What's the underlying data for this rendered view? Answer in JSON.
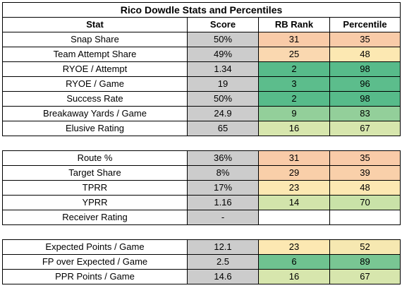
{
  "title": "Rico Dowdle Stats and Percentiles",
  "headers": [
    "Stat",
    "Score",
    "RB Rank",
    "Percentile"
  ],
  "colors": {
    "score_bg": "#cccccc",
    "scale": {
      "dark_green": "#57bb8a",
      "mid_green": "#93cf9a",
      "light_green": "#d7e6ad",
      "light_yellow": "#fce8b2",
      "light_orange": "#f9cba8",
      "white": "#ffffff"
    }
  },
  "sections": [
    {
      "rows": [
        {
          "stat": "Snap Share",
          "score": "50%",
          "rank": "31",
          "pct": "35",
          "rank_color": "#f9cba8",
          "pct_color": "#f9cba8"
        },
        {
          "stat": "Team Attempt Share",
          "score": "49%",
          "rank": "25",
          "pct": "48",
          "rank_color": "#fad8b0",
          "pct_color": "#fce8b2"
        },
        {
          "stat": "RYOE / Attempt",
          "score": "1.34",
          "rank": "2",
          "pct": "98",
          "rank_color": "#57bb8a",
          "pct_color": "#57bb8a"
        },
        {
          "stat": "RYOE / Game",
          "score": "19",
          "rank": "3",
          "pct": "96",
          "rank_color": "#5cbd8c",
          "pct_color": "#5cbd8c"
        },
        {
          "stat": "Success Rate",
          "score": "50%",
          "rank": "2",
          "pct": "98",
          "rank_color": "#57bb8a",
          "pct_color": "#57bb8a"
        },
        {
          "stat": "Breakaway Yards / Game",
          "score": "24.9",
          "rank": "9",
          "pct": "83",
          "rank_color": "#93cf9a",
          "pct_color": "#93cf9a"
        },
        {
          "stat": "Elusive Rating",
          "score": "65",
          "rank": "16",
          "pct": "67",
          "rank_color": "#d7e6ad",
          "pct_color": "#d7e6ad"
        }
      ]
    },
    {
      "rows": [
        {
          "stat": "Route %",
          "score": "36%",
          "rank": "31",
          "pct": "35",
          "rank_color": "#f9cba8",
          "pct_color": "#f9cba8"
        },
        {
          "stat": "Target Share",
          "score": "8%",
          "rank": "29",
          "pct": "39",
          "rank_color": "#f9cfa9",
          "pct_color": "#f9d0aa"
        },
        {
          "stat": "TPRR",
          "score": "17%",
          "rank": "23",
          "pct": "48",
          "rank_color": "#fce8b2",
          "pct_color": "#fce8b2"
        },
        {
          "stat": "YPRR",
          "score": "1.16",
          "rank": "14",
          "pct": "70",
          "rank_color": "#d2e4ab",
          "pct_color": "#c9e2a8"
        },
        {
          "stat": "Receiver Rating",
          "score": "-",
          "rank": "",
          "pct": "",
          "rank_color": "#ffffff",
          "pct_color": "#ffffff"
        }
      ]
    },
    {
      "rows": [
        {
          "stat": "Expected Points / Game",
          "score": "12.1",
          "rank": "23",
          "pct": "52",
          "rank_color": "#fce8b2",
          "pct_color": "#f6e8b1"
        },
        {
          "stat": "FP over Expected / Game",
          "score": "2.5",
          "rank": "6",
          "pct": "89",
          "rank_color": "#6fc290",
          "pct_color": "#79c693"
        },
        {
          "stat": "PPR Points / Game",
          "score": "14.6",
          "rank": "16",
          "pct": "67",
          "rank_color": "#d7e6ad",
          "pct_color": "#d7e6ad"
        }
      ]
    }
  ]
}
